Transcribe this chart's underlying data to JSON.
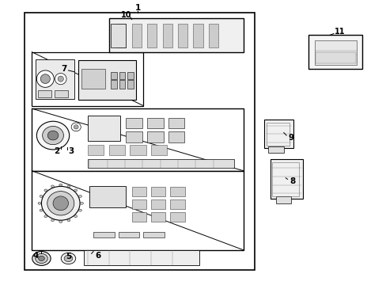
{
  "background_color": "#ffffff",
  "line_color": "#000000",
  "label_color": "#000000",
  "figsize": [
    4.89,
    3.6
  ],
  "dpi": 100
}
